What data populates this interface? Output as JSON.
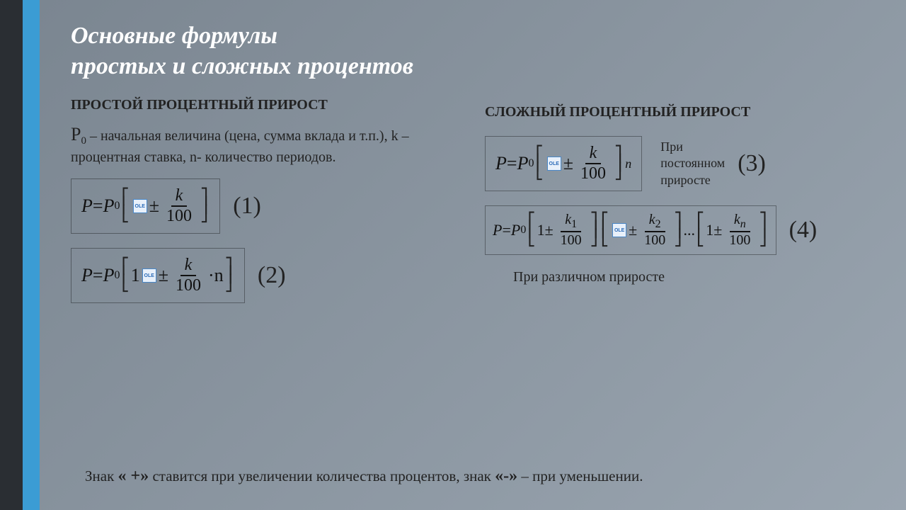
{
  "title_line1": "Основные формулы",
  "title_line2": "простых и сложных процентов",
  "left": {
    "heading": "ПРОСТОЙ ПРОЦЕНТНЫЙ ПРИРОСТ",
    "desc_pre": "Р",
    "desc_sub": "0",
    "desc_rest": " – начальная величина (цена, сумма вклада и т.п.), k –процентная ставка, n- количество периодов.",
    "label1": "(1)",
    "label2": "(2)"
  },
  "right": {
    "heading": "СЛОЖНЫЙ ПРОЦЕНТНЫЙ ПРИРОСТ",
    "note1a": "При",
    "note1b": "постоянном",
    "note1c": "приросте",
    "label3": "(3)",
    "label4": "(4)",
    "note2": "При различном приросте"
  },
  "formula": {
    "P": "P",
    "eq": " = ",
    "P0p": "P",
    "zero": "0",
    "one": "1",
    "pm": "±",
    "k": "k",
    "hundred": "100",
    "dot_n": "·n",
    "n": "n",
    "k1": "k",
    "s1": "1",
    "k2": "k",
    "s2": "2",
    "kn": "k",
    "sn": "n",
    "dots": "..."
  },
  "footer_a": "Знак ",
  "footer_plus": "« +»",
  "footer_b": " ставится при увеличении количества процентов, знак ",
  "footer_minus": "«-»",
  "footer_c": " – при уменьшении."
}
